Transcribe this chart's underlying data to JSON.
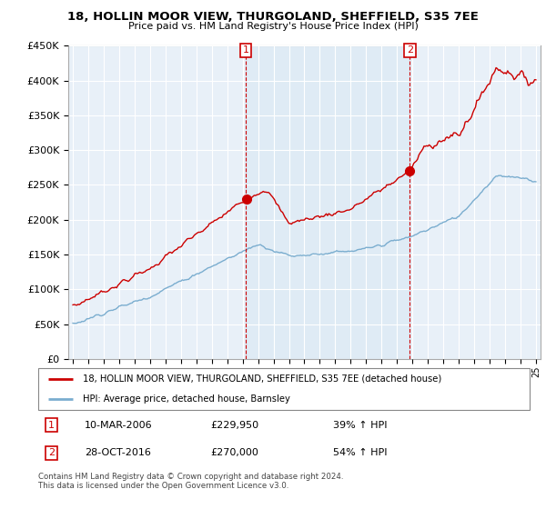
{
  "title": "18, HOLLIN MOOR VIEW, THURGOLAND, SHEFFIELD, S35 7EE",
  "subtitle": "Price paid vs. HM Land Registry's House Price Index (HPI)",
  "legend_line1": "18, HOLLIN MOOR VIEW, THURGOLAND, SHEFFIELD, S35 7EE (detached house)",
  "legend_line2": "HPI: Average price, detached house, Barnsley",
  "transaction1_date": "10-MAR-2006",
  "transaction1_price": "£229,950",
  "transaction1_hpi": "39% ↑ HPI",
  "transaction2_date": "28-OCT-2016",
  "transaction2_price": "£270,000",
  "transaction2_hpi": "54% ↑ HPI",
  "footer": "Contains HM Land Registry data © Crown copyright and database right 2024.\nThis data is licensed under the Open Government Licence v3.0.",
  "red_color": "#cc0000",
  "blue_color": "#7aadcf",
  "shade_color": "#dce9f5",
  "background_color": "#ffffff",
  "plot_bg_color": "#e8f0f8",
  "grid_color": "#ffffff",
  "ylim": [
    0,
    450000
  ],
  "yticks": [
    0,
    50000,
    100000,
    150000,
    200000,
    250000,
    300000,
    350000,
    400000,
    450000
  ],
  "t1_year": 2006.21,
  "t2_year": 2016.83,
  "t1_price": 229950,
  "t2_price": 270000
}
